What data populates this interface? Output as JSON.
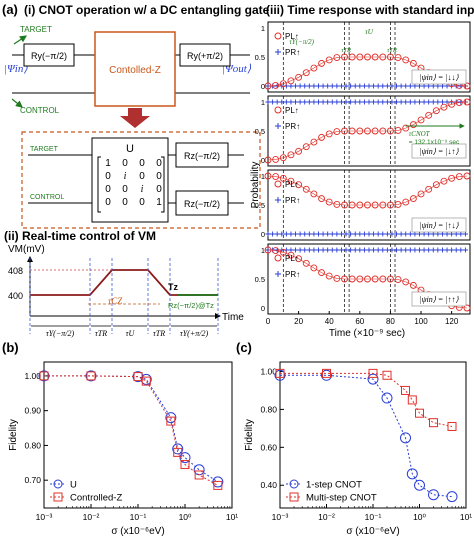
{
  "panels": {
    "a": {
      "letter": "(a)",
      "i": {
        "title": "(i) CNOT operation w/ a DC entangling gate",
        "target": "TARGET",
        "control": "CONTROL",
        "psi_in": "|Ψin⟩",
        "psi_out": "|Ψout⟩",
        "ry_left": "Ry(−π/2)",
        "ry_right": "Ry(+π/2)",
        "controlled_z": "Contolled-Z",
        "u_label": "U",
        "u_matrix": [
          [
            "1",
            "0",
            "0",
            "0"
          ],
          [
            "0",
            "i",
            "0",
            "0"
          ],
          [
            "0",
            "0",
            "i",
            "0"
          ],
          [
            "0",
            "0",
            "0",
            "1"
          ]
        ],
        "rz1": "Rz(−π/2)",
        "rz2": "Rz(−π/2)"
      },
      "ii": {
        "title": "(ii) Real-time control of VM",
        "vm_label": "VM(mV)",
        "y_408": "408",
        "y_400": "400",
        "tz": "Tz",
        "tcz": "τCZ",
        "rz_note": "Rz(−π/2)@Tz",
        "time": "Time",
        "segments": [
          "τY(−π/2)",
          "τTR",
          "τU",
          "τTR",
          "τY(+π/2)"
        ]
      },
      "iii": {
        "title": "(iii) Time response with standard inputs",
        "ylabel": "Probability",
        "xlabel": "Time (×10⁻⁹ sec)",
        "xticks": [
          "0",
          "20",
          "40",
          "60",
          "80",
          "100",
          "120"
        ],
        "yticks": [
          "1",
          "0.5",
          "0"
        ],
        "inputs": [
          "|ψin⟩ = |↓↓⟩",
          "|ψin⟩ = |↓↑⟩",
          "|ψin⟩ = |↑↓⟩",
          "|ψin⟩ = |↑↑⟩"
        ],
        "legend_pl": "PL↑",
        "legend_pr": "PR↑",
        "tau_y": "τY(−π/2)",
        "tau_tr": "τTR",
        "tau_u": "τU",
        "tcnot": "τCNOT",
        "tcnot_val": "= 132.1x10⁻⁹ sec"
      }
    },
    "b": {
      "letter": "(b)"
    },
    "c": {
      "letter": "(c)"
    }
  },
  "colors": {
    "red": "#e0302a",
    "blue": "#2a3fd6",
    "darkred": "#8b1a1a",
    "orange": "#c8581a",
    "green": "#1f7a1f",
    "vline": "#3a5ad6"
  },
  "chart_data": [
    {
      "type": "line",
      "panel": "(a)(iii)",
      "ylabel": "Probability",
      "xlabel": "Time (×10⁻⁹ sec)",
      "xlim": [
        0,
        132
      ],
      "ylim": [
        0,
        1
      ],
      "x": [
        0,
        5,
        10,
        15,
        20,
        25,
        30,
        35,
        40,
        45,
        50,
        55,
        60,
        65,
        70,
        75,
        80,
        85,
        90,
        95,
        100,
        105,
        110,
        115,
        120,
        125,
        130
      ],
      "subplots": [
        {
          "input": "|↓↓⟩",
          "series": [
            {
              "name": "PL↑",
              "values": [
                0,
                0.01,
                0.04,
                0.09,
                0.15,
                0.23,
                0.31,
                0.39,
                0.45,
                0.49,
                0.5,
                0.5,
                0.5,
                0.5,
                0.5,
                0.5,
                0.5,
                0.49,
                0.45,
                0.39,
                0.31,
                0.23,
                0.15,
                0.09,
                0.04,
                0.01,
                0
              ]
            },
            {
              "name": "PR↑",
              "values": [
                0,
                0,
                0,
                0,
                0,
                0,
                0,
                0,
                0,
                0,
                0,
                0,
                0,
                0,
                0,
                0,
                0,
                0,
                0,
                0,
                0,
                0,
                0,
                0,
                0,
                0,
                0
              ]
            }
          ]
        },
        {
          "input": "|↓↑⟩",
          "series": [
            {
              "name": "PL↑",
              "values": [
                0,
                0.01,
                0.04,
                0.09,
                0.15,
                0.23,
                0.31,
                0.39,
                0.45,
                0.49,
                0.5,
                0.5,
                0.5,
                0.5,
                0.5,
                0.5,
                0.5,
                0.51,
                0.55,
                0.61,
                0.69,
                0.77,
                0.85,
                0.91,
                0.96,
                0.99,
                1
              ]
            },
            {
              "name": "PR↑",
              "values": [
                1,
                1,
                1,
                1,
                1,
                1,
                1,
                1,
                1,
                1,
                1,
                1,
                1,
                1,
                1,
                1,
                1,
                1,
                1,
                1,
                1,
                1,
                1,
                1,
                1,
                1,
                1
              ]
            }
          ]
        },
        {
          "input": "|↑↓⟩",
          "series": [
            {
              "name": "PL↑",
              "values": [
                1,
                0.99,
                0.96,
                0.91,
                0.85,
                0.77,
                0.69,
                0.61,
                0.55,
                0.51,
                0.5,
                0.5,
                0.5,
                0.5,
                0.5,
                0.5,
                0.5,
                0.51,
                0.55,
                0.61,
                0.69,
                0.77,
                0.85,
                0.91,
                0.96,
                0.99,
                1
              ]
            },
            {
              "name": "PR↑",
              "values": [
                0,
                0,
                0,
                0,
                0,
                0,
                0,
                0,
                0,
                0,
                0,
                0,
                0,
                0,
                0,
                0,
                0,
                0,
                0,
                0,
                0,
                0,
                0,
                0,
                0,
                0,
                0
              ]
            }
          ]
        },
        {
          "input": "|↑↑⟩",
          "series": [
            {
              "name": "PL↑",
              "values": [
                1,
                0.99,
                0.96,
                0.91,
                0.85,
                0.77,
                0.69,
                0.61,
                0.55,
                0.51,
                0.5,
                0.5,
                0.5,
                0.5,
                0.5,
                0.5,
                0.5,
                0.49,
                0.45,
                0.39,
                0.31,
                0.23,
                0.15,
                0.09,
                0.04,
                0.01,
                0
              ]
            },
            {
              "name": "PR↑",
              "values": [
                1,
                1,
                1,
                1,
                1,
                1,
                1,
                1,
                1,
                1,
                1,
                1,
                1,
                1,
                1,
                1,
                1,
                1,
                1,
                1,
                1,
                1,
                1,
                1,
                1,
                1,
                1
              ]
            }
          ]
        }
      ],
      "vlines": [
        10,
        50,
        53,
        80,
        83
      ]
    },
    {
      "type": "line",
      "panel": "(b)",
      "ylabel": "Fidelity",
      "xlabel": "σ (x10⁻⁶eV)",
      "xscale": "log",
      "xlim": [
        0.001,
        10
      ],
      "ylim": [
        0.62,
        1.04
      ],
      "xticks": [
        "10⁻³",
        "10⁻²",
        "10⁻¹",
        "10⁰",
        "10¹"
      ],
      "yticks": [
        "1.00",
        "0.90",
        "0.80",
        "0.70"
      ],
      "series": [
        {
          "name": "U",
          "x": [
            0.001,
            0.01,
            0.1,
            0.15,
            0.5,
            0.7,
            1,
            2,
            5
          ],
          "values": [
            1.0,
            1.0,
            0.998,
            0.99,
            0.88,
            0.79,
            0.765,
            0.73,
            0.695
          ]
        },
        {
          "name": "Controlled-Z",
          "x": [
            0.001,
            0.01,
            0.1,
            0.15,
            0.5,
            0.7,
            1,
            2,
            5
          ],
          "values": [
            1.0,
            1.0,
            0.998,
            0.985,
            0.87,
            0.78,
            0.745,
            0.715,
            0.685
          ]
        }
      ],
      "legend": "bottom-left"
    },
    {
      "type": "line",
      "panel": "(c)",
      "ylabel": "Fidelity",
      "xlabel": "σ (x10⁻⁶eV)",
      "xscale": "log",
      "xlim": [
        0.001,
        10
      ],
      "ylim": [
        0.28,
        1.05
      ],
      "xticks": [
        "10⁻³",
        "10⁻²",
        "10⁻¹",
        "10⁰",
        "10¹"
      ],
      "yticks": [
        "1.00",
        "0.80",
        "0.60",
        "0.40"
      ],
      "series": [
        {
          "name": "1-step CNOT",
          "x": [
            0.001,
            0.01,
            0.1,
            0.2,
            0.5,
            0.7,
            1,
            2,
            5
          ],
          "values": [
            0.98,
            0.98,
            0.96,
            0.86,
            0.65,
            0.46,
            0.4,
            0.35,
            0.34
          ]
        },
        {
          "name": "Multi-step CNOT",
          "x": [
            0.001,
            0.01,
            0.1,
            0.2,
            0.5,
            0.7,
            1,
            2,
            5
          ],
          "values": [
            0.99,
            0.99,
            0.99,
            0.98,
            0.9,
            0.85,
            0.78,
            0.73,
            0.71
          ]
        }
      ],
      "legend": "bottom-left"
    }
  ]
}
